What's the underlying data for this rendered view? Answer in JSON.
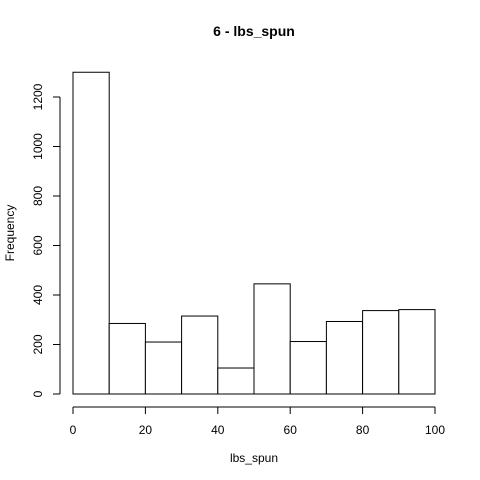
{
  "chart_data": {
    "type": "bar",
    "title": "6 - lbs_spun",
    "xlabel": "lbs_spun",
    "ylabel": "Frequency",
    "bins": [
      {
        "from": 0,
        "to": 10,
        "value": 1300
      },
      {
        "from": 10,
        "to": 20,
        "value": 285
      },
      {
        "from": 20,
        "to": 30,
        "value": 210
      },
      {
        "from": 30,
        "to": 40,
        "value": 315
      },
      {
        "from": 40,
        "to": 50,
        "value": 105
      },
      {
        "from": 50,
        "to": 60,
        "value": 445
      },
      {
        "from": 60,
        "to": 70,
        "value": 212
      },
      {
        "from": 70,
        "to": 80,
        "value": 293
      },
      {
        "from": 80,
        "to": 90,
        "value": 337
      },
      {
        "from": 90,
        "to": 100,
        "value": 341
      }
    ],
    "x_ticks": [
      0,
      20,
      40,
      60,
      80,
      100
    ],
    "y_ticks": [
      0,
      200,
      400,
      600,
      800,
      1000,
      1200
    ],
    "xlim": [
      0,
      100
    ],
    "ylim": [
      0,
      1300
    ],
    "grid": false,
    "colors": {
      "bar_fill": "#ffffff",
      "bar_stroke": "#000000"
    }
  }
}
